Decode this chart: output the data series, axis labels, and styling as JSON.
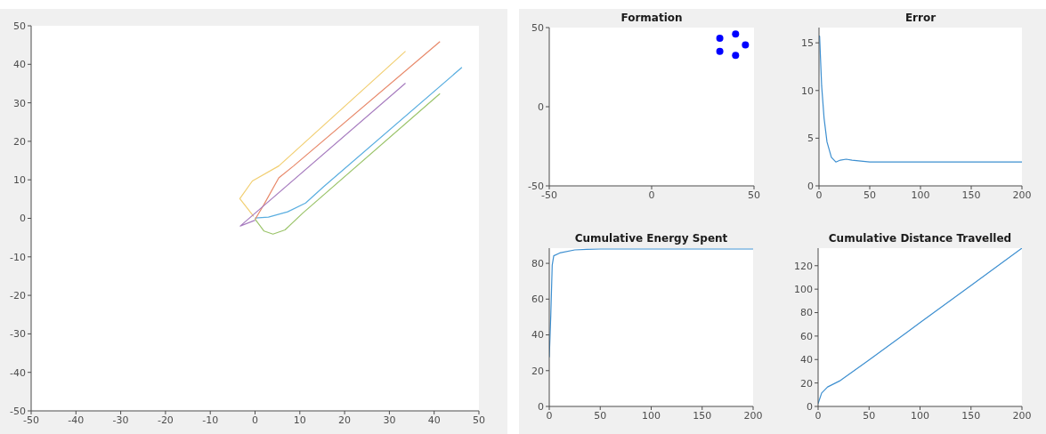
{
  "chart_data": [
    {
      "type": "line",
      "xlim": [
        -50,
        50
      ],
      "ylim": [
        -50,
        50
      ],
      "xticks": [
        -50,
        -40,
        -30,
        -20,
        -10,
        0,
        10,
        20,
        30,
        40,
        50
      ],
      "yticks": [
        -50,
        -40,
        -30,
        -20,
        -10,
        0,
        10,
        20,
        30,
        40,
        50
      ],
      "series": [
        {
          "color": "#5aaee0",
          "x": [
            0,
            3,
            7.3,
            11.3,
            15.3,
            46.2
          ],
          "values": [
            0.1,
            0.3,
            1.7,
            4,
            8.2,
            39.2
          ]
        },
        {
          "color": "#e8896a",
          "x": [
            0,
            2,
            5.3,
            8.6,
            41.3
          ],
          "values": [
            -0.3,
            3.6,
            10.5,
            13.6,
            45.9
          ]
        },
        {
          "color": "#f2cf72",
          "x": [
            -0.3,
            -3.4,
            -0.6,
            5.3,
            33.6
          ],
          "values": [
            0.5,
            5.1,
            9.7,
            13.6,
            43.4
          ]
        },
        {
          "color": "#a77cbf",
          "x": [
            0,
            -3.3,
            33.6
          ],
          "values": [
            -0.5,
            -2,
            35.1
          ]
        },
        {
          "color": "#9bc46a",
          "x": [
            0,
            2,
            4,
            6.7,
            10.6,
            41.3
          ],
          "values": [
            -0.2,
            -3.3,
            -4.1,
            -3,
            1.3,
            32.4
          ]
        }
      ]
    },
    {
      "type": "scatter",
      "title": "Formation",
      "xlim": [
        -50,
        50
      ],
      "ylim": [
        -50,
        50
      ],
      "xticks": [
        -50,
        0,
        50
      ],
      "yticks": [
        -50,
        0,
        50
      ],
      "marker": "circle",
      "series": [
        {
          "color": "#0000ff",
          "x": [
            33.3,
            41,
            45.8,
            33.3,
            41
          ],
          "values": [
            43.3,
            45.9,
            39.1,
            35,
            32.4
          ]
        }
      ]
    },
    {
      "type": "line",
      "title": "Error",
      "xlim": [
        0,
        200
      ],
      "ylim": [
        0,
        16.6
      ],
      "xticks": [
        0,
        50,
        100,
        150,
        200
      ],
      "yticks": [
        0,
        5,
        10,
        15
      ],
      "series": [
        {
          "color": "#3d8fd0",
          "x": [
            0,
            0.6,
            2.6,
            5,
            7.9,
            12.2,
            16.6,
            21,
            26.8,
            32.6,
            41.3,
            50,
            100,
            150,
            200
          ],
          "values": [
            15.7,
            15.7,
            10.5,
            7.1,
            4.6,
            3,
            2.5,
            2.7,
            2.8,
            2.7,
            2.6,
            2.5,
            2.5,
            2.5,
            2.5
          ]
        }
      ]
    },
    {
      "type": "line",
      "title": "Cumulative Energy Spent",
      "xlim": [
        0,
        200
      ],
      "ylim": [
        0,
        88.5
      ],
      "xticks": [
        0,
        50,
        100,
        150,
        200
      ],
      "yticks": [
        0,
        20,
        40,
        60,
        80
      ],
      "series": [
        {
          "color": "#3d8fd0",
          "x": [
            0,
            1.5,
            2.9,
            4.4,
            10.3,
            25,
            36.7,
            50,
            100,
            150,
            200
          ],
          "values": [
            27.5,
            50.8,
            79,
            84.2,
            85.8,
            87.5,
            87.8,
            88,
            88,
            88,
            88
          ]
        }
      ]
    },
    {
      "type": "line",
      "title": "Cumulative Distance Travelled",
      "xlim": [
        0,
        200
      ],
      "ylim": [
        0,
        135
      ],
      "xticks": [
        0,
        50,
        100,
        150,
        200
      ],
      "yticks": [
        0,
        20,
        40,
        60,
        80,
        100,
        120
      ],
      "series": [
        {
          "color": "#3d8fd0",
          "x": [
            0,
            3.5,
            9.3,
            21,
            50,
            100,
            150,
            200
          ],
          "values": [
            2.5,
            11.5,
            16.6,
            21.7,
            39.6,
            71.4,
            103.2,
            135
          ]
        }
      ]
    }
  ]
}
